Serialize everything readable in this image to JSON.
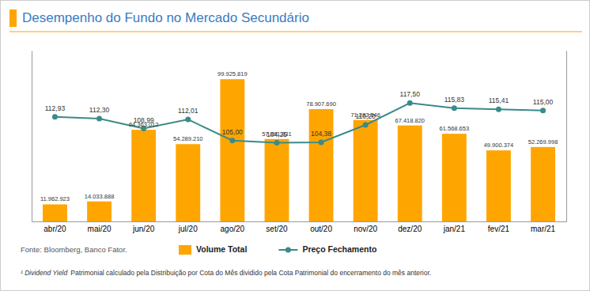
{
  "chart_data": {
    "type": "bar",
    "title": "Desempenho do Fundo no Mercado Secundário",
    "categories": [
      "abr/20",
      "mai/20",
      "jun/20",
      "jul/20",
      "ago/20",
      "set/20",
      "out/20",
      "nov/20",
      "dez/20",
      "jan/21",
      "fev/21",
      "mar/21"
    ],
    "series": [
      {
        "name": "Volume Total",
        "type": "bar",
        "color": "#FFA500",
        "values": [
          11962923,
          14033888,
          64363012,
          54289210,
          99925819,
          57891831,
          78907690,
          71283546,
          67418820,
          61568653,
          49900374,
          52269998
        ],
        "value_labels": [
          "11.962.923",
          "14.033.888",
          "64.363.012",
          "54.289.210",
          "99.925.819",
          "57.891.831",
          "78.907.690",
          "71.283.546",
          "67.418.820",
          "61.568.653",
          "49.900.374",
          "52.269.998"
        ]
      },
      {
        "name": "Preço Fechamento",
        "type": "line",
        "axis": "y2",
        "color": "#3A8A8A",
        "marker": "circle",
        "values": [
          112.93,
          112.3,
          108.99,
          112.01,
          105.0,
          104.25,
          104.38,
          110.2,
          117.5,
          115.83,
          115.41,
          115.0
        ],
        "value_labels": [
          "112,93",
          "112,30",
          "108,99",
          "112,01",
          "105,00",
          "104,25",
          "104,38",
          "110,20",
          "117,50",
          "115,83",
          "115,41",
          "115,00"
        ]
      }
    ],
    "ylim": [
      0,
      120000000
    ],
    "yticks": [],
    "y2lim": [
      78,
      135
    ],
    "y2ticks": [],
    "tick_labels": "x",
    "data_labels": true,
    "grid": false,
    "legend": "bottom",
    "annotations": [
      "Fonte: Bloomberg, Banco Fator.",
      "¹ Dividend Yield",
      "Patrimonial calculado pela Distribuição por Cota do Mês dividido pela Cota Patrimonial do encerramento do mês anterior."
    ]
  }
}
